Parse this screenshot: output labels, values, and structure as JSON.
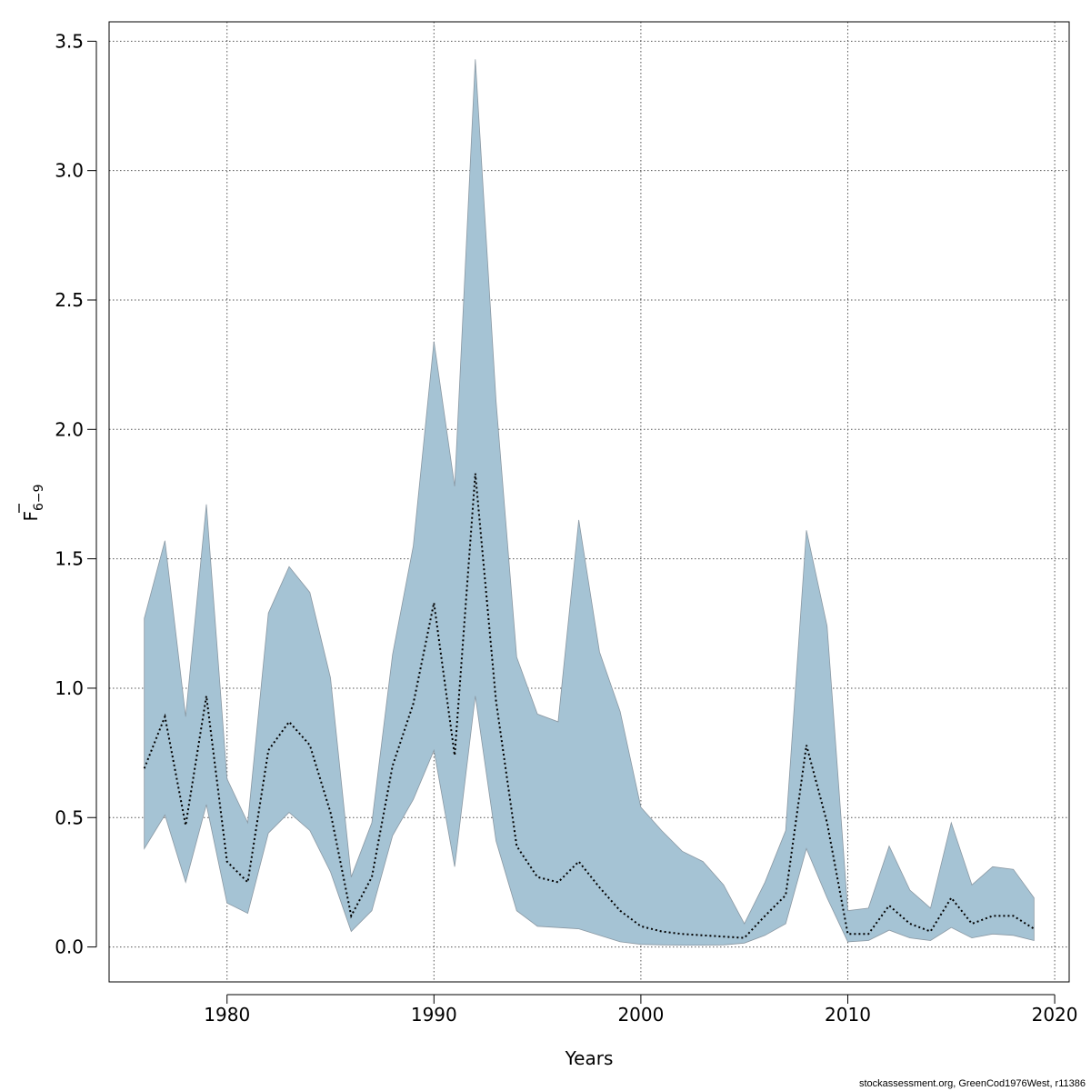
{
  "chart_data": {
    "type": "area",
    "xlabel": "Years",
    "ylabel": "F",
    "ylabel_subscript": "6−9",
    "xlim": [
      1974.3,
      2020.7
    ],
    "ylim": [
      -0.135,
      3.575
    ],
    "x_ticks": [
      1980,
      1990,
      2000,
      2010,
      2020
    ],
    "y_ticks": [
      0.0,
      0.5,
      1.0,
      1.5,
      2.0,
      2.5,
      3.0,
      3.5
    ],
    "grid": true,
    "band_color": "#a5c3d4",
    "band_edge_color": "#8a98a3",
    "line_color": "#000000",
    "x": [
      1976,
      1977,
      1978,
      1979,
      1980,
      1981,
      1982,
      1983,
      1984,
      1985,
      1986,
      1987,
      1988,
      1989,
      1990,
      1991,
      1992,
      1993,
      1994,
      1995,
      1996,
      1997,
      1998,
      1999,
      2000,
      2001,
      2002,
      2003,
      2004,
      2005,
      2006,
      2007,
      2008,
      2009,
      2010,
      2011,
      2012,
      2013,
      2014,
      2015,
      2016,
      2017,
      2018,
      2019
    ],
    "series": [
      {
        "role": "estimate",
        "values": [
          0.69,
          0.89,
          0.47,
          0.97,
          0.33,
          0.25,
          0.76,
          0.87,
          0.78,
          0.52,
          0.12,
          0.27,
          0.7,
          0.94,
          1.33,
          0.74,
          1.83,
          0.95,
          0.39,
          0.27,
          0.25,
          0.33,
          0.23,
          0.14,
          0.08,
          0.06,
          0.05,
          0.045,
          0.04,
          0.035,
          0.12,
          0.2,
          0.78,
          0.48,
          0.05,
          0.05,
          0.16,
          0.09,
          0.06,
          0.19,
          0.09,
          0.12,
          0.12,
          0.07
        ]
      },
      {
        "role": "upper",
        "values": [
          1.27,
          1.57,
          0.89,
          1.71,
          0.65,
          0.48,
          1.29,
          1.47,
          1.37,
          1.04,
          0.27,
          0.48,
          1.13,
          1.55,
          2.34,
          1.78,
          3.43,
          2.11,
          1.12,
          0.9,
          0.87,
          1.65,
          1.14,
          0.91,
          0.54,
          0.45,
          0.37,
          0.33,
          0.24,
          0.09,
          0.25,
          0.45,
          1.61,
          1.24,
          0.14,
          0.15,
          0.39,
          0.22,
          0.15,
          0.48,
          0.24,
          0.31,
          0.3,
          0.19
        ]
      },
      {
        "role": "lower",
        "values": [
          0.38,
          0.51,
          0.25,
          0.55,
          0.17,
          0.13,
          0.44,
          0.52,
          0.45,
          0.29,
          0.06,
          0.14,
          0.43,
          0.57,
          0.76,
          0.31,
          0.97,
          0.41,
          0.14,
          0.08,
          0.075,
          0.07,
          0.045,
          0.02,
          0.01,
          0.008,
          0.007,
          0.007,
          0.008,
          0.015,
          0.045,
          0.09,
          0.38,
          0.19,
          0.02,
          0.025,
          0.065,
          0.035,
          0.025,
          0.075,
          0.035,
          0.05,
          0.045,
          0.025
        ]
      }
    ]
  },
  "footer": {
    "credit": "stockassessment.org, GreenCod1976West, r11386"
  }
}
